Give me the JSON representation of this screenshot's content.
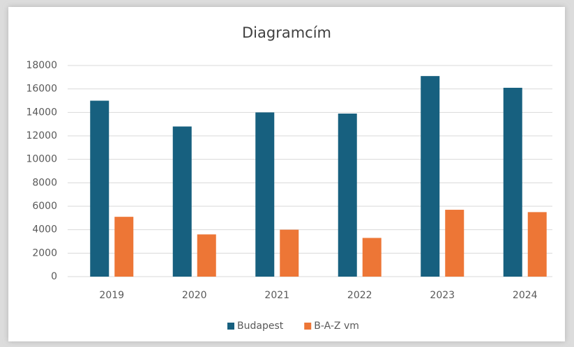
{
  "chart_data": {
    "type": "bar",
    "title": "Diagramcím",
    "categories": [
      "2019",
      "2020",
      "2021",
      "2022",
      "2023",
      "2024"
    ],
    "series": [
      {
        "name": "Budapest",
        "color": "#17607f",
        "values": [
          15000,
          12800,
          14000,
          13900,
          17100,
          16100
        ]
      },
      {
        "name": "B-A-Z vm",
        "color": "#ed7636",
        "values": [
          5100,
          3600,
          4000,
          3300,
          5700,
          5500
        ]
      }
    ],
    "ylim": [
      0,
      18000
    ],
    "yticks": [
      0,
      2000,
      4000,
      6000,
      8000,
      10000,
      12000,
      14000,
      16000,
      18000
    ],
    "grid": true,
    "legend": "bottom"
  }
}
